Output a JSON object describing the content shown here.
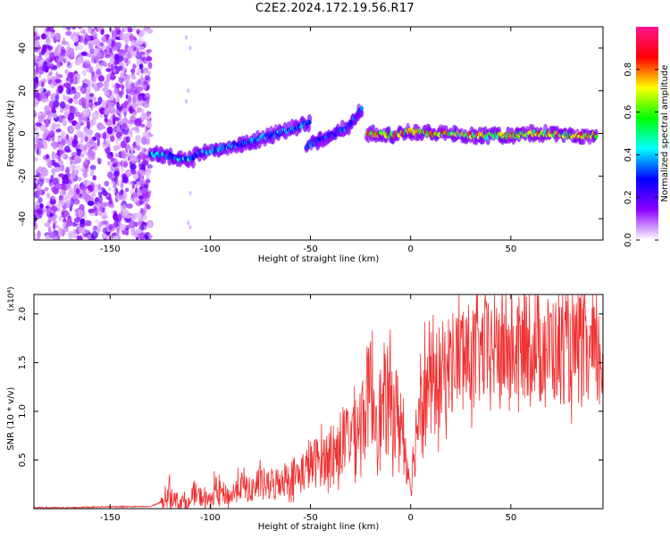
{
  "title": "C2E2.2024.172.19.56.R17",
  "chart_data": [
    {
      "type": "heatmap",
      "xlabel": "Height of straight line (km)",
      "ylabel": "Frequency (Hz)",
      "xlim": [
        -188,
        96
      ],
      "ylim": [
        -50,
        50
      ],
      "x_ticks": [
        -150,
        -100,
        -50,
        0,
        50
      ],
      "y_ticks": [
        -40,
        -20,
        0,
        20,
        40
      ],
      "colorbar": {
        "label": "Normalized spectral amplitude",
        "range": [
          0,
          1
        ],
        "ticks": [
          0.0,
          0.2,
          0.4,
          0.6,
          0.8
        ],
        "colormap": [
          "#ffffff",
          "#8c00ff",
          "#0000ff",
          "#00ffff",
          "#00ff00",
          "#ffff00",
          "#ff0000",
          "#ff1493"
        ]
      },
      "noise_region": {
        "x_range": [
          -188,
          -130
        ],
        "description_level": "speckle"
      },
      "trace_segments": [
        {
          "x": [
            -130,
            -123,
            -115,
            -108
          ],
          "freq_hz": [
            -10,
            -10,
            -12,
            -12
          ],
          "amplitude": 0.45
        },
        {
          "x": [
            -108,
            -100,
            -90,
            -80,
            -70,
            -60,
            -50
          ],
          "freq_hz": [
            -10,
            -8,
            -6,
            -4,
            -1,
            2,
            5
          ],
          "amplitude": 0.4
        },
        {
          "x": [
            -52,
            -45,
            -38,
            -30,
            -24
          ],
          "freq_hz": [
            -6,
            -3,
            0,
            4,
            12
          ],
          "amplitude": 0.35
        },
        {
          "x": [
            -22,
            -10,
            0,
            10,
            20,
            30,
            40,
            50,
            60,
            70,
            80,
            93
          ],
          "freq_hz": [
            0,
            -1,
            1,
            0,
            0,
            -1,
            -1,
            -1,
            0,
            0,
            -1,
            -1
          ],
          "amplitude": 0.8
        }
      ],
      "grid": false
    },
    {
      "type": "line",
      "xlabel": "Height of straight line (km)",
      "ylabel": "SNR (10 * v/v)",
      "y_multiplier": "(x10⁴)",
      "xlim": [
        -188,
        96
      ],
      "ylim": [
        0,
        2.2
      ],
      "x_ticks": [
        -150,
        -100,
        -50,
        0,
        50
      ],
      "y_ticks": [
        0.5,
        1.0,
        1.5,
        2.0
      ],
      "line_color": "#f03030",
      "series": [
        {
          "x": [
            -188,
            -170,
            -150,
            -130,
            -123,
            -121,
            -118,
            -110,
            -108,
            -100,
            -98,
            -90,
            -85,
            -80,
            -75,
            -70,
            -65,
            -60,
            -55,
            -50,
            -45,
            -40,
            -35,
            -30,
            -25,
            -20,
            -18,
            -15,
            -10,
            -5,
            0,
            2,
            5,
            10,
            15,
            20,
            25,
            30,
            40,
            50,
            60,
            70,
            80,
            90,
            96
          ],
          "values": [
            0.01,
            0.01,
            0.02,
            0.02,
            0.08,
            0.2,
            0.1,
            0.05,
            0.15,
            0.08,
            0.2,
            0.12,
            0.25,
            0.18,
            0.28,
            0.22,
            0.3,
            0.32,
            0.35,
            0.45,
            0.5,
            0.55,
            0.6,
            0.8,
            0.9,
            1.25,
            1.05,
            0.95,
            1.1,
            0.9,
            0.25,
            0.6,
            1.3,
            1.2,
            1.35,
            1.5,
            1.6,
            1.55,
            1.65,
            1.6,
            1.7,
            1.65,
            1.6,
            1.55,
            1.55
          ]
        }
      ],
      "grid": false
    }
  ]
}
